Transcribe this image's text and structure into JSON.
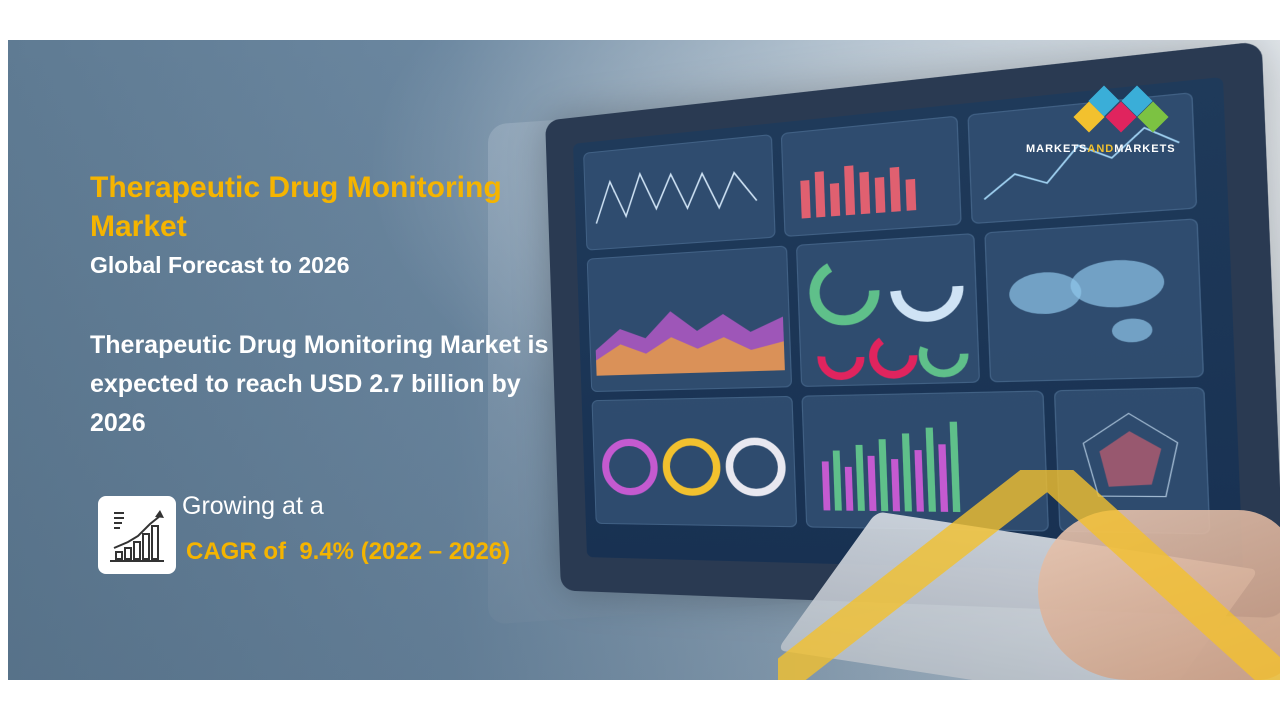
{
  "brand": {
    "logo_text_part1": "MARKETS",
    "logo_text_part2": "AND",
    "logo_text_part3": "MARKETS",
    "colors": [
      "#f2c12e",
      "#3aaed8",
      "#e0245e",
      "#7cc242",
      "#3aaed8"
    ]
  },
  "headline": {
    "title": "Therapeutic Drug Monitoring Market",
    "subtitle": "Global Forecast to 2026",
    "description": "Therapeutic Drug Monitoring Market is expected to reach USD 2.7 billion by 2026"
  },
  "growth": {
    "icon": "growth-chart-icon",
    "intro": "Growing at a",
    "cagr": "CAGR of  9.4% (2022 – 2026)"
  },
  "theme": {
    "accent": "#f5b400",
    "text": "#ffffff"
  }
}
